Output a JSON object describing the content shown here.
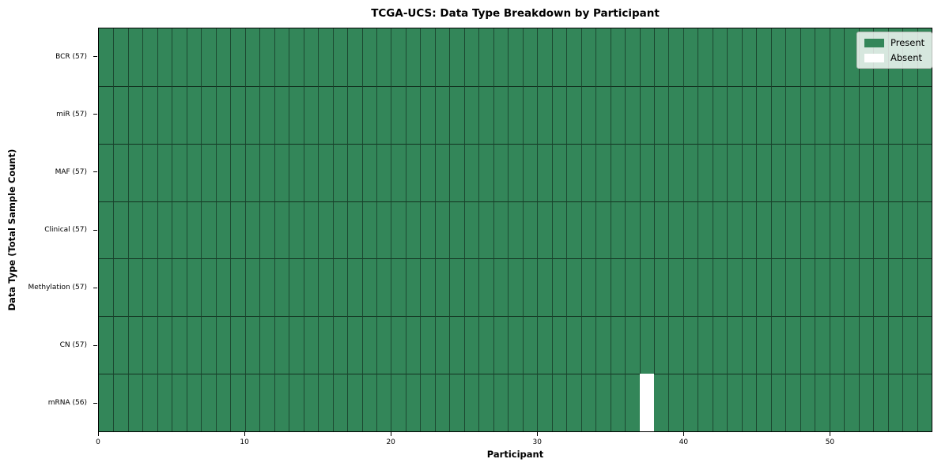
{
  "chart_data": {
    "type": "heatmap",
    "title": "TCGA-UCS: Data Type Breakdown by Participant",
    "xlabel": "Participant",
    "ylabel": "Data Type (Total Sample Count)",
    "n_participants": 57,
    "x_axis_range": [
      0,
      57
    ],
    "x_ticks": [
      0,
      10,
      20,
      30,
      40,
      50
    ],
    "rows": [
      {
        "label": "BCR (57)",
        "data_type": "BCR",
        "present_count": 57,
        "absent_participants": []
      },
      {
        "label": "miR (57)",
        "data_type": "miR",
        "present_count": 57,
        "absent_participants": []
      },
      {
        "label": "MAF (57)",
        "data_type": "MAF",
        "present_count": 57,
        "absent_participants": []
      },
      {
        "label": "Clinical (57)",
        "data_type": "Clinical",
        "present_count": 57,
        "absent_participants": []
      },
      {
        "label": "Methylation (57)",
        "data_type": "Methylation",
        "present_count": 57,
        "absent_participants": []
      },
      {
        "label": "CN (57)",
        "data_type": "CN",
        "present_count": 57,
        "absent_participants": []
      },
      {
        "label": "mRNA (56)",
        "data_type": "mRNA",
        "present_count": 56,
        "absent_participants": [
          37
        ]
      }
    ],
    "legend": {
      "position": "upper right",
      "items": [
        {
          "label": "Present",
          "color": "#338659"
        },
        {
          "label": "Absent",
          "color": "#FFFFFF"
        }
      ]
    },
    "colors": {
      "present": "#338659",
      "absent": "#FFFFFF",
      "cell_edge": "#1F3D2E",
      "spine": "#000000",
      "background": "#FFFFFF"
    },
    "grid": true
  }
}
